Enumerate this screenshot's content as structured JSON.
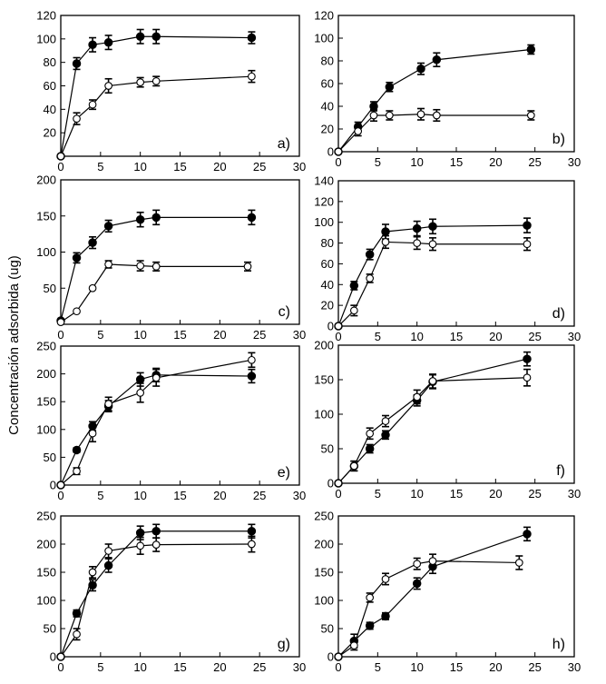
{
  "ylabel": "Concentración adsorbida  (ug)",
  "colors": {
    "axis": "#000000",
    "filled_marker": "#000000",
    "open_marker": "#ffffff"
  },
  "chart_data": [
    {
      "type": "scatter",
      "panel_label": "a)",
      "xlim": [
        0,
        30
      ],
      "ylim": [
        0,
        120
      ],
      "xticks": [
        0,
        5,
        10,
        15,
        20,
        25,
        30
      ],
      "yticks": [
        20,
        40,
        60,
        80,
        100,
        120
      ],
      "series": [
        {
          "marker": "filled",
          "x": [
            0,
            2,
            4,
            6,
            10,
            12,
            24
          ],
          "y": [
            0,
            79,
            95,
            97,
            102,
            102,
            101
          ],
          "err": [
            0,
            5,
            6,
            6,
            6,
            6,
            5
          ]
        },
        {
          "marker": "open",
          "x": [
            0,
            2,
            4,
            6,
            10,
            12,
            24
          ],
          "y": [
            0,
            32,
            44,
            60,
            63,
            64,
            68
          ],
          "err": [
            0,
            5,
            4,
            6,
            4,
            4,
            5
          ]
        }
      ]
    },
    {
      "type": "scatter",
      "panel_label": "b)",
      "xlim": [
        0,
        30
      ],
      "ylim": [
        0,
        120
      ],
      "xticks": [
        0,
        5,
        10,
        15,
        20,
        25,
        30
      ],
      "yticks": [
        0,
        20,
        40,
        60,
        80,
        100,
        120
      ],
      "series": [
        {
          "marker": "filled",
          "x": [
            0,
            2.5,
            4.5,
            6.5,
            10.5,
            12.5,
            24.5
          ],
          "y": [
            0,
            22,
            40,
            57,
            73,
            81,
            90
          ],
          "err": [
            0,
            4,
            4,
            4,
            5,
            6,
            4
          ]
        },
        {
          "marker": "open",
          "x": [
            0,
            2.5,
            4.5,
            6.5,
            10.5,
            12.5,
            24.5
          ],
          "y": [
            0,
            18,
            32,
            32,
            33,
            32,
            32
          ],
          "err": [
            0,
            4,
            5,
            4,
            5,
            5,
            4
          ]
        }
      ]
    },
    {
      "type": "scatter",
      "panel_label": "c)",
      "xlim": [
        0,
        30
      ],
      "ylim": [
        0,
        200
      ],
      "xticks": [
        0,
        5,
        10,
        15,
        20,
        25,
        30
      ],
      "yticks": [
        50,
        100,
        150,
        200
      ],
      "series": [
        {
          "marker": "filled",
          "x": [
            0,
            2,
            4,
            6,
            10,
            12,
            24
          ],
          "y": [
            5,
            92,
            113,
            136,
            145,
            148,
            148
          ],
          "err": [
            0,
            7,
            8,
            8,
            10,
            10,
            10
          ]
        },
        {
          "marker": "open",
          "x": [
            0,
            2,
            4,
            6,
            10,
            12,
            23.5
          ],
          "y": [
            3,
            18,
            50,
            83,
            81,
            80,
            80
          ],
          "err": [
            0,
            0,
            0,
            5,
            7,
            6,
            6
          ]
        }
      ]
    },
    {
      "type": "scatter",
      "panel_label": "d)",
      "xlim": [
        0,
        30
      ],
      "ylim": [
        0,
        140
      ],
      "xticks": [
        0,
        5,
        10,
        15,
        20,
        25,
        30
      ],
      "yticks": [
        0,
        20,
        40,
        60,
        80,
        100,
        120,
        140
      ],
      "series": [
        {
          "marker": "filled",
          "x": [
            0,
            2,
            4,
            6,
            10,
            12,
            24
          ],
          "y": [
            0,
            39,
            69,
            91,
            94,
            96,
            97
          ],
          "err": [
            0,
            4,
            5,
            7,
            7,
            7,
            7
          ]
        },
        {
          "marker": "open",
          "x": [
            0,
            2,
            4,
            6,
            10,
            12,
            24
          ],
          "y": [
            0,
            15,
            46,
            81,
            80,
            79,
            79
          ],
          "err": [
            0,
            5,
            4,
            6,
            6,
            6,
            6
          ]
        }
      ]
    },
    {
      "type": "scatter",
      "panel_label": "e)",
      "xlim": [
        0,
        30
      ],
      "ylim": [
        0,
        250
      ],
      "xticks": [
        0,
        5,
        10,
        15,
        20,
        25,
        30
      ],
      "yticks": [
        0,
        50,
        100,
        150,
        200,
        250
      ],
      "series": [
        {
          "marker": "filled",
          "x": [
            0,
            2,
            4,
            6,
            10,
            12,
            24
          ],
          "y": [
            0,
            63,
            106,
            142,
            190,
            198,
            196
          ],
          "err": [
            0,
            4,
            8,
            10,
            12,
            12,
            12
          ]
        },
        {
          "marker": "open",
          "x": [
            0,
            2,
            4,
            6,
            10,
            12,
            24
          ],
          "y": [
            0,
            25,
            93,
            146,
            166,
            193,
            225
          ],
          "err": [
            0,
            6,
            15,
            12,
            17,
            15,
            13
          ]
        }
      ]
    },
    {
      "type": "scatter",
      "panel_label": "f)",
      "xlim": [
        0,
        30
      ],
      "ylim": [
        0,
        200
      ],
      "xticks": [
        0,
        5,
        10,
        15,
        20,
        25,
        30
      ],
      "yticks": [
        0,
        50,
        100,
        150,
        200
      ],
      "series": [
        {
          "marker": "filled",
          "x": [
            0,
            2,
            4,
            6,
            10,
            12,
            24
          ],
          "y": [
            0,
            25,
            50,
            70,
            120,
            147,
            180
          ],
          "err": [
            0,
            7,
            6,
            6,
            8,
            10,
            10
          ]
        },
        {
          "marker": "open",
          "x": [
            0,
            2,
            4,
            6,
            10,
            12,
            24
          ],
          "y": [
            0,
            25,
            72,
            90,
            125,
            148,
            153
          ],
          "err": [
            0,
            7,
            8,
            8,
            10,
            10,
            12
          ]
        }
      ]
    },
    {
      "type": "scatter",
      "panel_label": "g)",
      "xlim": [
        0,
        30
      ],
      "ylim": [
        0,
        250
      ],
      "xticks": [
        0,
        5,
        10,
        15,
        20,
        25,
        30
      ],
      "yticks": [
        0,
        50,
        100,
        150,
        200,
        250
      ],
      "series": [
        {
          "marker": "filled",
          "x": [
            0,
            2,
            4,
            6,
            10,
            12,
            24
          ],
          "y": [
            0,
            77,
            127,
            162,
            220,
            223,
            223
          ],
          "err": [
            0,
            6,
            10,
            12,
            12,
            12,
            12
          ]
        },
        {
          "marker": "open",
          "x": [
            0,
            2,
            4,
            6,
            10,
            12,
            24
          ],
          "y": [
            0,
            40,
            150,
            188,
            197,
            199,
            200
          ],
          "err": [
            0,
            10,
            10,
            12,
            15,
            12,
            14
          ]
        }
      ]
    },
    {
      "type": "scatter",
      "panel_label": "h)",
      "xlim": [
        0,
        30
      ],
      "ylim": [
        0,
        250
      ],
      "xticks": [
        0,
        5,
        10,
        15,
        20,
        25,
        30
      ],
      "yticks": [
        0,
        50,
        100,
        150,
        200,
        250
      ],
      "series": [
        {
          "marker": "filled",
          "x": [
            0,
            2,
            4,
            6,
            10,
            12,
            24
          ],
          "y": [
            0,
            28,
            55,
            72,
            130,
            160,
            218
          ],
          "err": [
            0,
            12,
            6,
            6,
            10,
            12,
            12
          ]
        },
        {
          "marker": "open",
          "x": [
            0,
            2,
            4,
            6,
            10,
            12,
            23
          ],
          "y": [
            0,
            20,
            105,
            138,
            165,
            170,
            167
          ],
          "err": [
            0,
            8,
            8,
            10,
            10,
            12,
            12
          ]
        }
      ]
    }
  ]
}
